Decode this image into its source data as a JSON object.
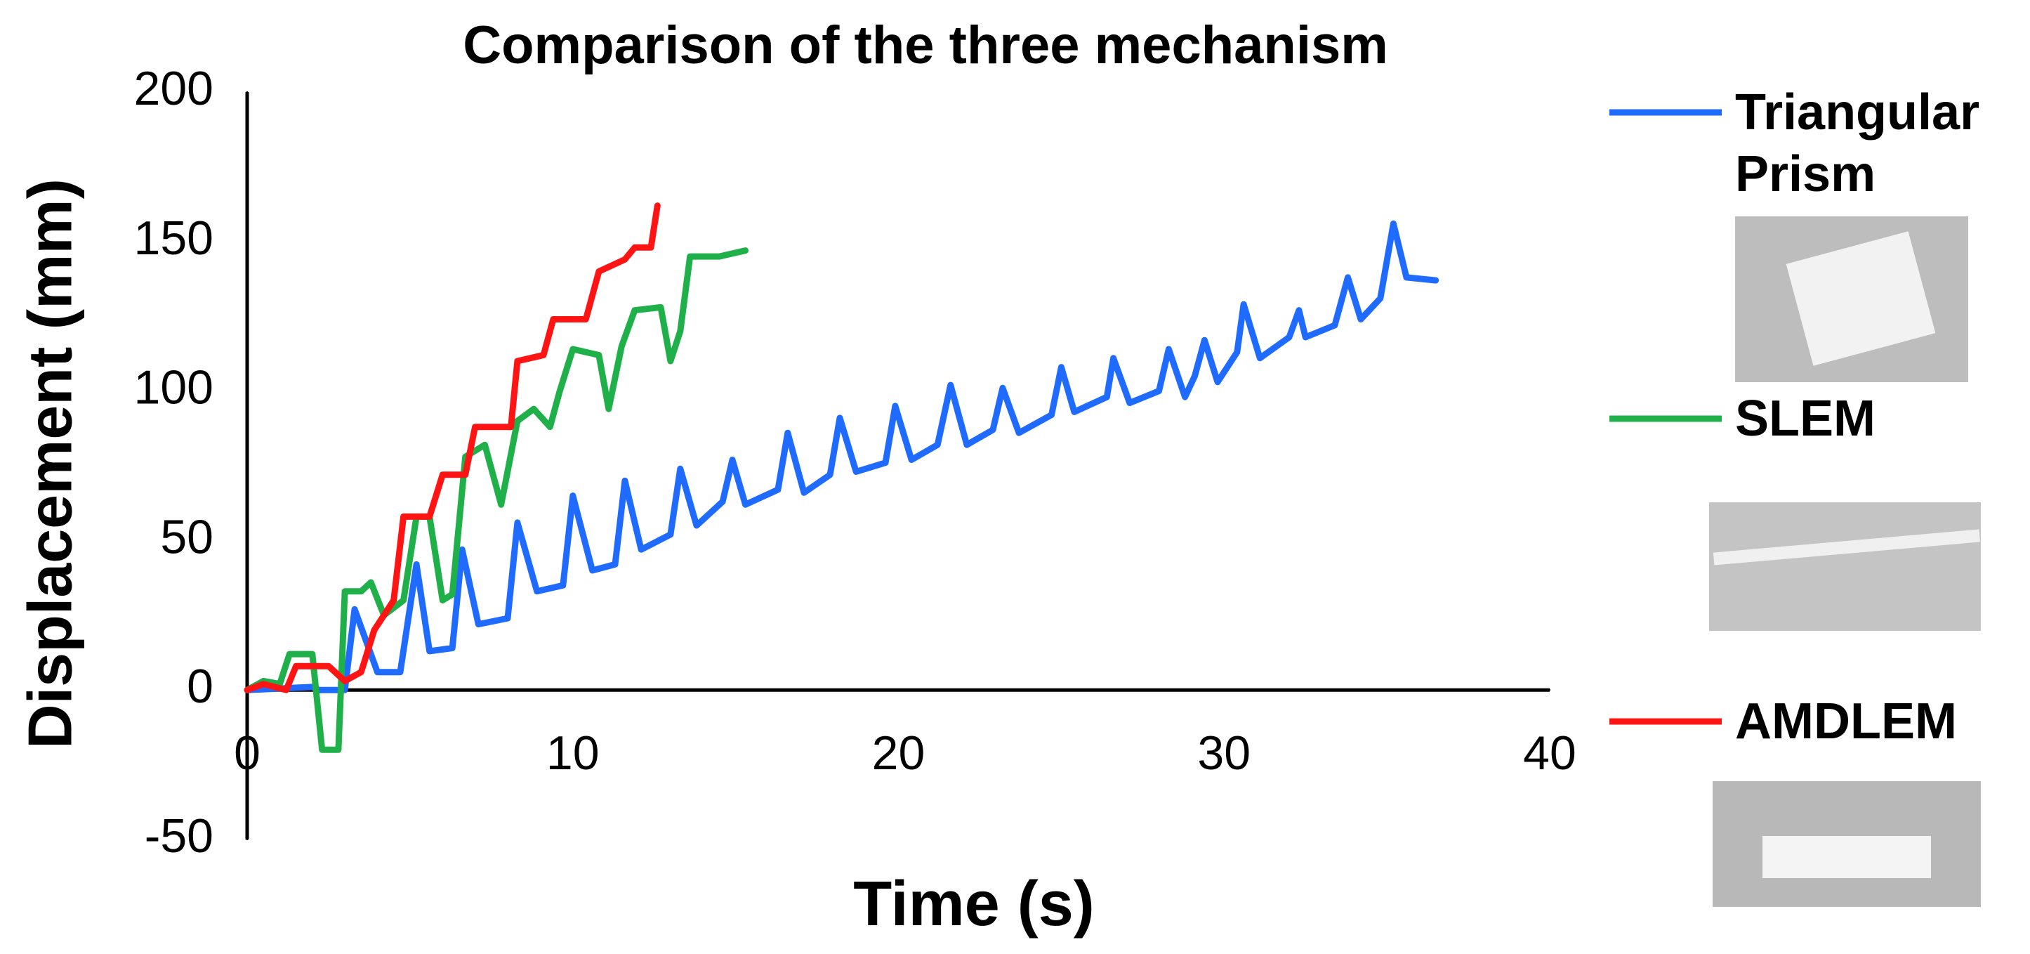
{
  "chart_data": {
    "type": "line",
    "title": "Comparison of the three mechanism",
    "x_label": "Time (s)",
    "y_label": "Displacement (mm)",
    "xlim": [
      0,
      40
    ],
    "xticks": [
      0,
      10,
      20,
      30,
      40
    ],
    "ylim": [
      -50,
      200
    ],
    "yticks": [
      -50,
      0,
      50,
      100,
      150,
      200
    ],
    "series": [
      {
        "name": "Triangular Prism",
        "color": "#1f6bff",
        "x": [
          0,
          2,
          2.2,
          3,
          3.3,
          4,
          4.7,
          5.2,
          5.6,
          6.3,
          6.6,
          7.1,
          8,
          8.3,
          8.9,
          9.7,
          10,
          10.6,
          11.3,
          11.6,
          12.1,
          13,
          13.3,
          13.8,
          14.6,
          14.9,
          15.3,
          16.3,
          16.6,
          17.1,
          17.9,
          18.2,
          18.7,
          19.6,
          19.9,
          20.4,
          21.2,
          21.6,
          22.1,
          22.9,
          23.2,
          23.7,
          24.7,
          25,
          25.4,
          26.4,
          26.6,
          27.1,
          28,
          28.3,
          28.8,
          29.1,
          29.4,
          29.8,
          30.4,
          30.6,
          31.1,
          32,
          32.3,
          32.5,
          33.4,
          33.8,
          34.2,
          34.8,
          35.2,
          35.6,
          36.5
        ],
        "values": [
          0,
          1,
          0,
          0,
          27,
          6,
          6,
          42,
          13,
          14,
          47,
          22,
          24,
          56,
          33,
          35,
          65,
          40,
          42,
          70,
          47,
          52,
          74,
          55,
          63,
          77,
          62,
          67,
          86,
          66,
          72,
          91,
          73,
          76,
          95,
          77,
          82,
          102,
          82,
          87,
          101,
          86,
          92,
          108,
          93,
          98,
          111,
          96,
          100,
          114,
          98,
          105,
          117,
          103,
          113,
          129,
          111,
          118,
          127,
          118,
          122,
          138,
          124,
          131,
          156,
          138,
          137
        ]
      },
      {
        "name": "SLEM",
        "color": "#1fb04a",
        "x": [
          0,
          0.5,
          1,
          1.3,
          2,
          2.3,
          2.8,
          3,
          3.5,
          3.8,
          4.2,
          4.8,
          5.2,
          5.6,
          6,
          6.3,
          6.7,
          7.3,
          7.8,
          8.3,
          8.8,
          9.3,
          9.6,
          10,
          10.8,
          11.1,
          11.5,
          11.9,
          12.7,
          13,
          13.3,
          13.6,
          14.5,
          15.3
        ],
        "values": [
          0,
          3,
          2,
          12,
          12,
          -20,
          -20,
          33,
          33,
          36,
          25,
          30,
          58,
          58,
          30,
          32,
          78,
          82,
          62,
          90,
          94,
          88,
          100,
          114,
          112,
          94,
          115,
          127,
          128,
          110,
          120,
          145,
          145,
          147
        ]
      },
      {
        "name": "AMDLEM",
        "color": "#ff1414",
        "x": [
          0,
          0.5,
          1.2,
          1.5,
          2.5,
          3,
          3.5,
          3.9,
          4.5,
          4.8,
          5.6,
          6,
          6.7,
          7,
          8.1,
          8.3,
          9.1,
          9.4,
          10.4,
          10.8,
          11.6,
          11.9,
          12.4,
          12.6
        ],
        "values": [
          0,
          2,
          0,
          8,
          8,
          3,
          6,
          20,
          30,
          58,
          58,
          72,
          72,
          88,
          88,
          110,
          112,
          124,
          124,
          140,
          144,
          148,
          148,
          162
        ]
      }
    ]
  }
}
